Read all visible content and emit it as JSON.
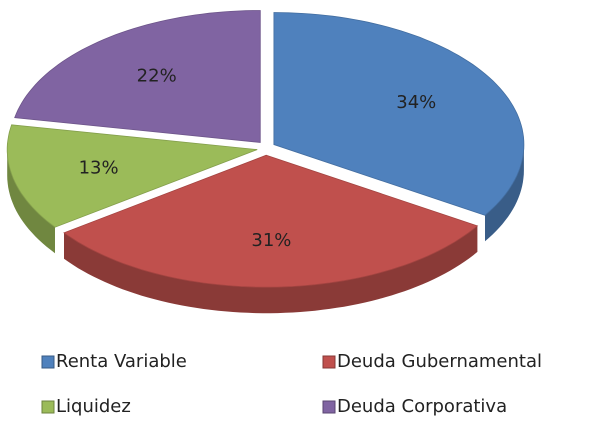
{
  "chart_data": {
    "type": "pie",
    "categories": [
      "Renta Variable",
      "Deuda Gubernamental",
      "Liquidez",
      "Deuda Corporativa"
    ],
    "values": [
      34,
      31,
      13,
      22
    ],
    "value_labels": [
      "34%",
      "31%",
      "13%",
      "22%"
    ],
    "colors": [
      "#4f81bd",
      "#c0504d",
      "#9bbb59",
      "#8064a2"
    ],
    "legend": "bottom"
  }
}
